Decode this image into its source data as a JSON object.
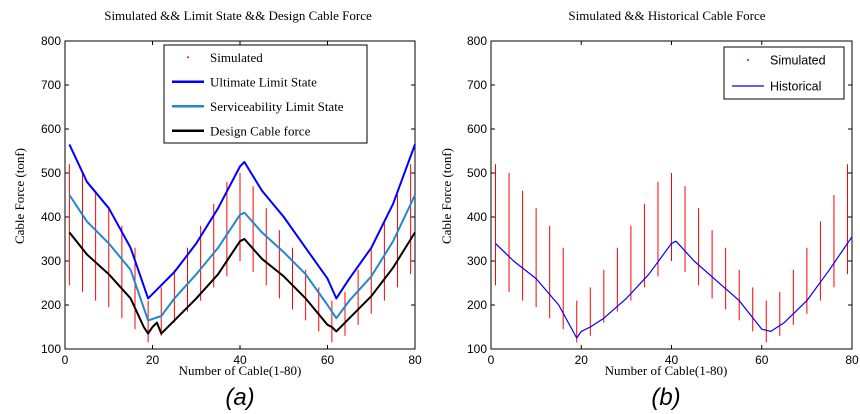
{
  "chart_data": [
    {
      "type": "line",
      "panel_caption": "(a)",
      "title": "Simulated && Limit State && Design Cable Force",
      "xlabel": "Number of Cable(1-80)",
      "ylabel": "Cable Force (tonf)",
      "xlim": [
        0,
        80
      ],
      "ylim": [
        100,
        800
      ],
      "xticks": [
        "0",
        "20",
        "40",
        "60",
        "80"
      ],
      "yticks": [
        "100",
        "200",
        "300",
        "400",
        "500",
        "600",
        "700",
        "800"
      ],
      "legend_position": "top-center",
      "series": [
        {
          "name": "Simulated",
          "style": "range-bars",
          "color": "#ff0000",
          "cable": [
            1,
            4,
            7,
            10,
            13,
            16,
            19,
            22,
            25,
            28,
            31,
            34,
            37,
            40,
            43,
            46,
            49,
            52,
            55,
            58,
            61,
            64,
            67,
            70,
            73,
            76,
            79
          ],
          "low": [
            245,
            230,
            210,
            195,
            170,
            145,
            115,
            130,
            160,
            185,
            210,
            240,
            265,
            300,
            275,
            245,
            215,
            190,
            165,
            140,
            115,
            130,
            155,
            180,
            210,
            240,
            270
          ],
          "high": [
            520,
            500,
            460,
            420,
            380,
            330,
            210,
            240,
            280,
            330,
            380,
            430,
            480,
            500,
            470,
            420,
            370,
            330,
            280,
            240,
            210,
            230,
            280,
            330,
            390,
            450,
            520
          ]
        },
        {
          "name": "Ultimate Limit State",
          "color": "#0000ff",
          "x": [
            1,
            5,
            10,
            15,
            19,
            22,
            25,
            30,
            35,
            40,
            41,
            45,
            50,
            55,
            60,
            62,
            65,
            70,
            75,
            80
          ],
          "y": [
            565,
            480,
            420,
            330,
            215,
            245,
            275,
            340,
            420,
            515,
            525,
            460,
            400,
            330,
            260,
            215,
            260,
            330,
            430,
            565
          ]
        },
        {
          "name": "Serviceability Limit State",
          "color": "#2288cc",
          "x": [
            1,
            5,
            10,
            15,
            19,
            22,
            25,
            30,
            35,
            40,
            41,
            45,
            50,
            55,
            60,
            62,
            65,
            70,
            75,
            80
          ],
          "y": [
            450,
            390,
            340,
            280,
            165,
            175,
            215,
            270,
            330,
            405,
            410,
            365,
            320,
            270,
            200,
            170,
            210,
            265,
            345,
            450
          ]
        },
        {
          "name": "Design Cable force",
          "color": "#000000",
          "x": [
            1,
            5,
            10,
            15,
            18,
            19,
            20,
            21,
            22,
            25,
            30,
            35,
            40,
            41,
            45,
            50,
            55,
            60,
            61,
            62,
            65,
            70,
            75,
            80
          ],
          "y": [
            365,
            315,
            270,
            215,
            150,
            135,
            150,
            160,
            135,
            165,
            215,
            270,
            345,
            350,
            305,
            265,
            215,
            155,
            150,
            140,
            170,
            220,
            285,
            365
          ]
        }
      ]
    },
    {
      "type": "line",
      "panel_caption": "(b)",
      "title": "Simulated && Historical Cable Force",
      "xlabel": "Number of Cable(1-80)",
      "ylabel": "Cable Force (tonf)",
      "xlim": [
        0,
        80
      ],
      "ylim": [
        100,
        800
      ],
      "xticks": [
        "0",
        "20",
        "40",
        "60",
        "80"
      ],
      "yticks": [
        "100",
        "200",
        "300",
        "400",
        "500",
        "600",
        "700",
        "800"
      ],
      "legend_position": "top-right",
      "series": [
        {
          "name": "Simulated",
          "style": "range-bars",
          "color": "#ff0000",
          "cable": [
            1,
            4,
            7,
            10,
            13,
            16,
            19,
            22,
            25,
            28,
            31,
            34,
            37,
            40,
            43,
            46,
            49,
            52,
            55,
            58,
            61,
            64,
            67,
            70,
            73,
            76,
            79
          ],
          "low": [
            245,
            230,
            210,
            195,
            170,
            145,
            115,
            130,
            160,
            185,
            210,
            240,
            265,
            300,
            275,
            245,
            215,
            190,
            165,
            140,
            115,
            130,
            155,
            180,
            210,
            240,
            270
          ],
          "high": [
            520,
            500,
            460,
            420,
            380,
            330,
            210,
            240,
            280,
            330,
            380,
            430,
            480,
            500,
            470,
            420,
            370,
            330,
            280,
            240,
            210,
            230,
            280,
            330,
            390,
            450,
            520
          ]
        },
        {
          "name": "Historical",
          "color": "#0000ff",
          "x": [
            1,
            5,
            10,
            15,
            19,
            20,
            22,
            25,
            30,
            35,
            40,
            41,
            45,
            50,
            55,
            60,
            62,
            65,
            70,
            75,
            80
          ],
          "y": [
            340,
            300,
            260,
            200,
            125,
            140,
            150,
            170,
            215,
            270,
            340,
            345,
            300,
            255,
            210,
            145,
            140,
            160,
            210,
            280,
            355
          ]
        }
      ]
    }
  ]
}
